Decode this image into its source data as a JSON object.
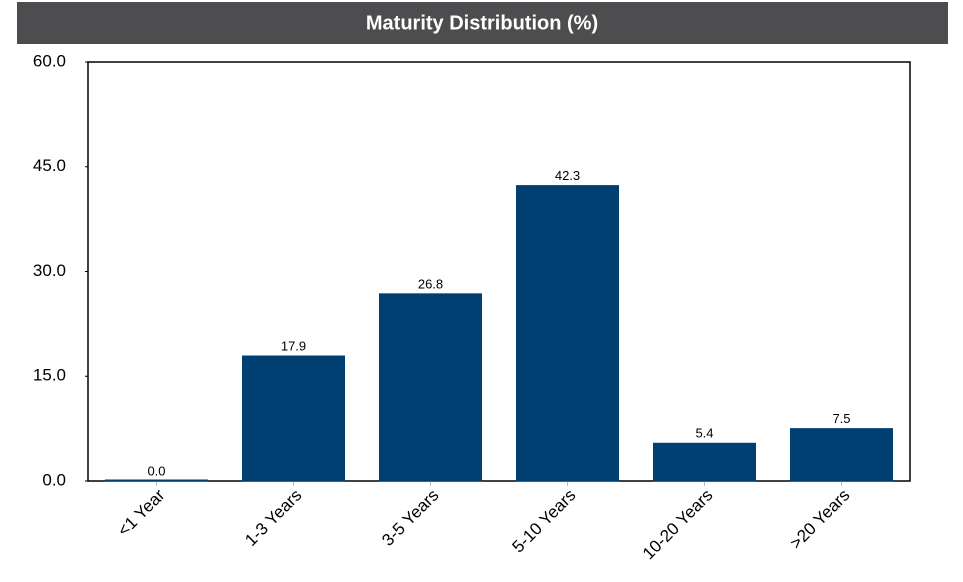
{
  "chart_data": {
    "type": "bar",
    "title": "Maturity Distribution (%)",
    "categories": [
      "<1 Year",
      "1-3 Years",
      "3-5 Years",
      "5-10 Years",
      "10-20 Years",
      ">20 Years"
    ],
    "values": [
      0,
      17.9,
      26.8,
      42.3,
      5.4,
      7.5
    ],
    "value_labels": [
      "0.0",
      "17.9",
      "26.8",
      "42.3",
      "5.4",
      "7.5"
    ],
    "color": "#003f72",
    "ylim": [
      0,
      60
    ],
    "yticks": [
      {
        "value": 0,
        "label": "0.0"
      },
      {
        "value": 15,
        "label": "15.0"
      },
      {
        "value": 30,
        "label": "30.0"
      },
      {
        "value": 45,
        "label": "45.0"
      },
      {
        "value": 60,
        "label": "60.0"
      }
    ],
    "grid": false
  }
}
